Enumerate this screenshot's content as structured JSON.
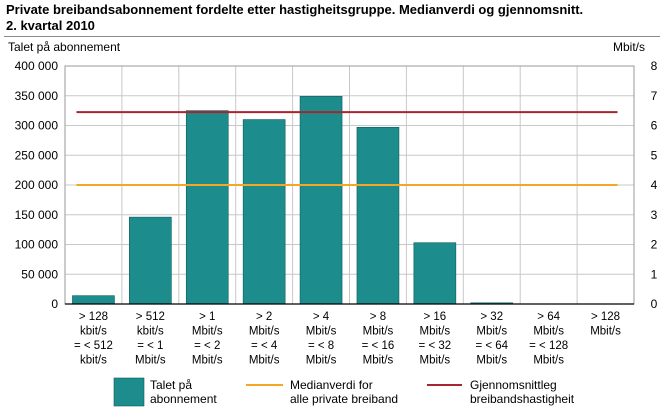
{
  "chart_data": {
    "type": "bar",
    "title_line1": "Private breibandsabonnement fordelte etter hastigheitsgruppe. Medianverdi og gjennomsnitt.",
    "title_line2": "2. kvartal 2010",
    "ylabel": "Talet på abonnement",
    "y2label": "Mbit/s",
    "ylim": [
      0,
      400000
    ],
    "y2lim": [
      0,
      8
    ],
    "yticks": [
      "0",
      "50 000",
      "100 000",
      "150 000",
      "200 000",
      "250 000",
      "300 000",
      "350 000",
      "400 000"
    ],
    "y2ticks": [
      "0",
      "1",
      "2",
      "3",
      "4",
      "5",
      "6",
      "7",
      "8"
    ],
    "grid": true,
    "legend_position": "bottom",
    "categories": [
      [
        "> 128",
        "kbit/s",
        "= < 512",
        "kbit/s"
      ],
      [
        "> 512",
        "kbit/s",
        "= < 1",
        "Mbit/s"
      ],
      [
        "> 1",
        "Mbit/s",
        "= < 2",
        "Mbit/s"
      ],
      [
        "> 2",
        "Mbit/s",
        "= < 4",
        "Mbit/s"
      ],
      [
        "> 4",
        "Mbit/s",
        "= < 8",
        "Mbit/s"
      ],
      [
        "> 8",
        "Mbit/s",
        "= < 16",
        "Mbit/s"
      ],
      [
        "> 16",
        "Mbit/s",
        "= < 32",
        "Mbit/s"
      ],
      [
        "> 32",
        "Mbit/s",
        "= < 64",
        "Mbit/s"
      ],
      [
        "> 64",
        "Mbit/s",
        "= < 128",
        "Mbit/s"
      ],
      [
        "> 128",
        "Mbit/s"
      ]
    ],
    "series": [
      {
        "name": "Talet på abonnement",
        "name_lines": [
          "Talet på",
          "abonnement"
        ],
        "type": "bar",
        "axis": "left",
        "color": "#1c8c8c",
        "values": [
          14000,
          146000,
          325000,
          310000,
          349000,
          297000,
          103000,
          2000,
          0,
          0
        ]
      },
      {
        "name": "Medianverdi for alle private breiband",
        "name_lines": [
          "Medianverdi for",
          "alle private breiband"
        ],
        "type": "line",
        "axis": "right",
        "color": "#f5a623",
        "value": 4
      },
      {
        "name": "Gjennomsnittleg breibandshastigheit",
        "name_lines": [
          "Gjennomsnittleg",
          "breibandshastigheit"
        ],
        "type": "line",
        "axis": "right",
        "color": "#a8242f",
        "value": 6.45
      }
    ]
  }
}
